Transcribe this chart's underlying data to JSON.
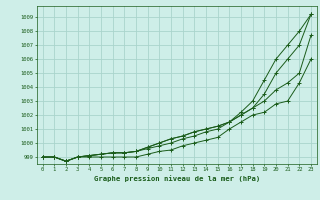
{
  "title": "Graphe pression niveau de la mer (hPa)",
  "background_color": "#ceeee8",
  "grid_color": "#aad4cc",
  "line_color": "#1a5c1a",
  "xlim": [
    -0.5,
    23.5
  ],
  "ylim": [
    998.5,
    1009.8
  ],
  "yticks": [
    999,
    1000,
    1001,
    1002,
    1003,
    1004,
    1005,
    1006,
    1007,
    1008,
    1009
  ],
  "xticks": [
    0,
    1,
    2,
    3,
    4,
    5,
    6,
    7,
    8,
    9,
    10,
    11,
    12,
    13,
    14,
    15,
    16,
    17,
    18,
    19,
    20,
    21,
    22,
    23
  ],
  "series": [
    [
      999.0,
      999.0,
      998.7,
      999.0,
      999.0,
      999.0,
      999.0,
      999.0,
      999.0,
      999.2,
      999.4,
      999.5,
      999.8,
      1000.0,
      1000.2,
      1000.4,
      1001.0,
      1001.5,
      1002.0,
      1002.2,
      1002.8,
      1003.0,
      1004.3,
      1006.0
    ],
    [
      999.0,
      999.0,
      998.7,
      999.0,
      999.1,
      999.2,
      999.3,
      999.3,
      999.4,
      999.6,
      999.8,
      1000.0,
      1000.3,
      1000.5,
      1000.8,
      1001.0,
      1001.5,
      1002.0,
      1002.5,
      1003.0,
      1003.8,
      1004.3,
      1005.0,
      1007.7
    ],
    [
      999.0,
      999.0,
      998.7,
      999.0,
      999.1,
      999.2,
      999.3,
      999.3,
      999.4,
      999.7,
      1000.0,
      1000.3,
      1000.5,
      1000.8,
      1001.0,
      1001.2,
      1001.5,
      1002.0,
      1002.5,
      1003.5,
      1005.0,
      1006.0,
      1007.0,
      1009.2
    ],
    [
      999.0,
      999.0,
      998.7,
      999.0,
      999.1,
      999.2,
      999.3,
      999.3,
      999.4,
      999.7,
      1000.0,
      1000.3,
      1000.5,
      1000.8,
      1001.0,
      1001.2,
      1001.5,
      1002.2,
      1003.0,
      1004.5,
      1006.0,
      1007.0,
      1008.0,
      1009.2
    ]
  ]
}
